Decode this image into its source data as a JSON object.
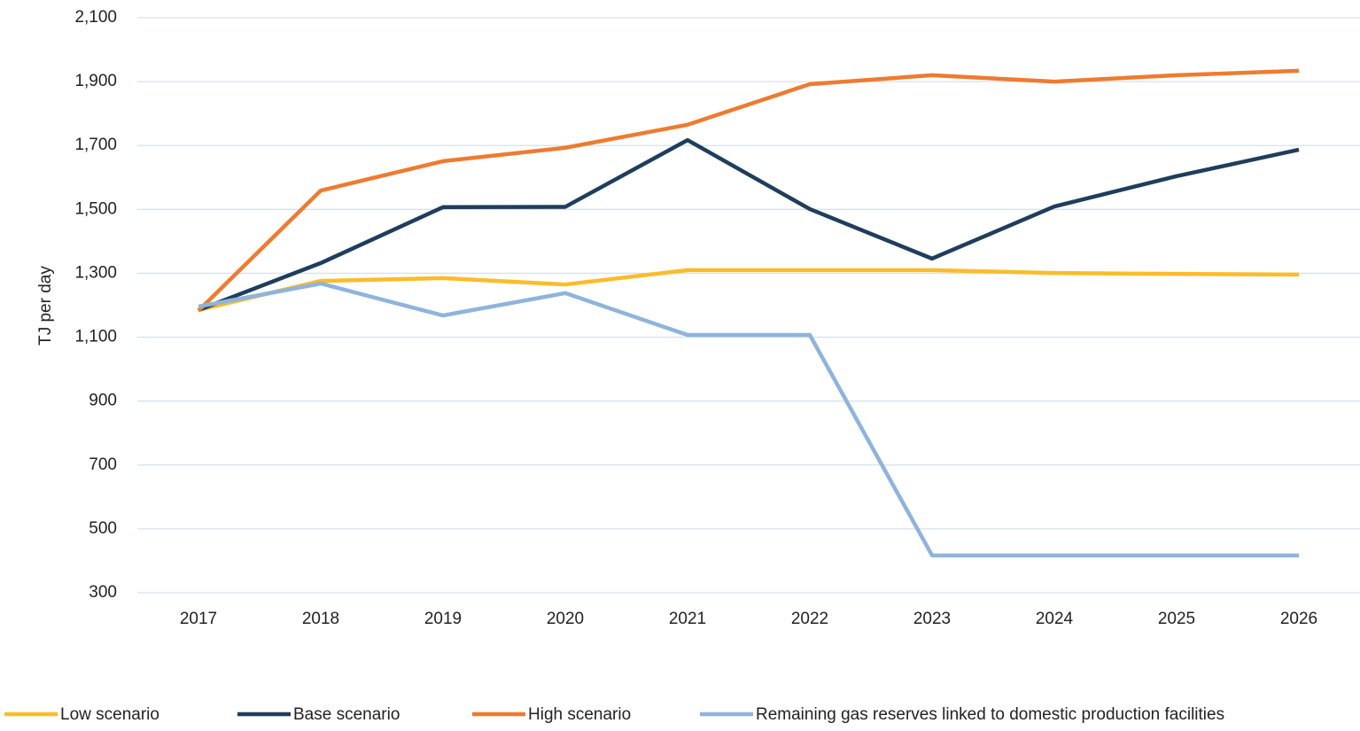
{
  "chart_data": {
    "type": "line",
    "y_label": "TJ per day",
    "categories": [
      "2017",
      "2018",
      "2019",
      "2020",
      "2021",
      "2022",
      "2023",
      "2024",
      "2025",
      "2026"
    ],
    "series": [
      {
        "name": "Low scenario",
        "color": "#fbbc2a",
        "values": [
          1185,
          1276,
          1285,
          1265,
          1310,
          1310,
          1310,
          1301,
          1298,
          1296
        ]
      },
      {
        "name": "Base scenario",
        "color": "#1f3d5c",
        "values": [
          1185,
          1332,
          1507,
          1508,
          1717,
          1501,
          1346,
          1509,
          1604,
          1687
        ]
      },
      {
        "name": "High scenario",
        "color": "#ee7b30",
        "values": [
          1183,
          1559,
          1651,
          1693,
          1765,
          1892,
          1920,
          1900,
          1920,
          1934
        ]
      },
      {
        "name": "Remaining gas reserves linked to domestic production facilities",
        "color": "#8fb4dc",
        "values": [
          1196,
          1268,
          1168,
          1238,
          1107,
          1107,
          417,
          417,
          417,
          417
        ]
      }
    ],
    "ylim": [
      300,
      2100
    ],
    "yticks": [
      300,
      500,
      700,
      900,
      {
        "value": 1100,
        "label": "1,100"
      },
      {
        "value": 1300,
        "label": "1,300"
      },
      {
        "value": 1500,
        "label": "1,500"
      },
      {
        "value": 1700,
        "label": "1,700"
      },
      {
        "value": 1900,
        "label": "1,900"
      },
      {
        "value": 2100,
        "label": "2,100"
      }
    ],
    "grid": true
  }
}
